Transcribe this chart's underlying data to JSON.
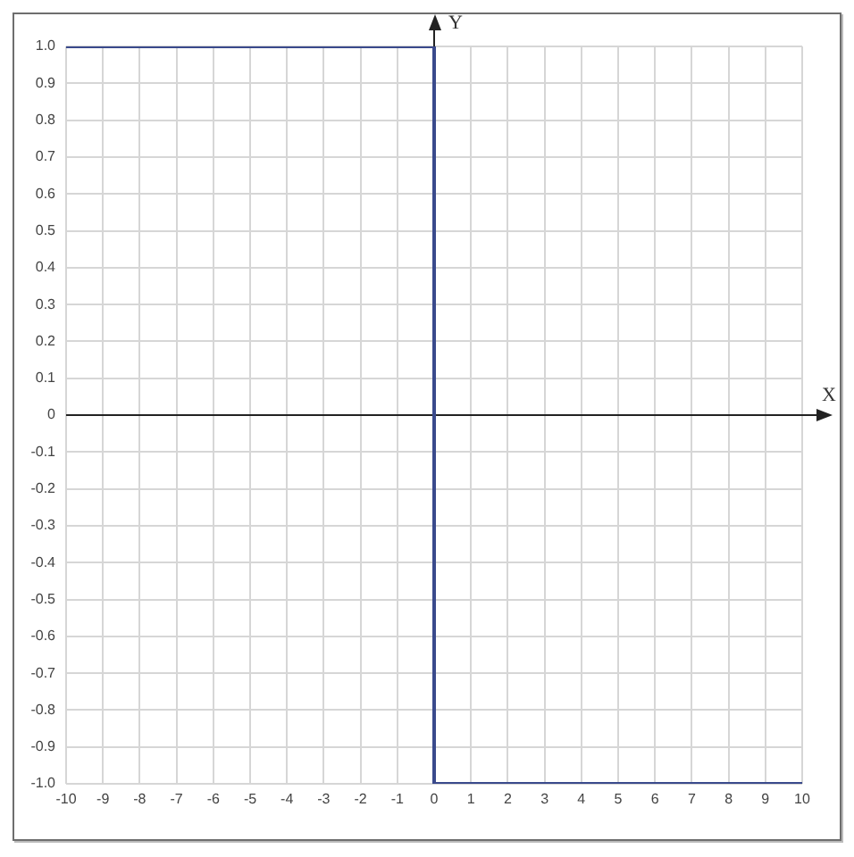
{
  "chart_data": {
    "type": "line",
    "xlabel": "X",
    "ylabel": "Y",
    "x": [
      -10,
      0,
      0,
      10
    ],
    "series": [
      {
        "color": "#3a4a8c",
        "values": [
          1,
          1,
          -1,
          -1
        ]
      }
    ],
    "xlim": [
      -10,
      10
    ],
    "ylim": [
      -1,
      1
    ],
    "xticks": [
      -10,
      -9,
      -8,
      -7,
      -6,
      -5,
      -4,
      -3,
      -2,
      -1,
      0,
      1,
      2,
      3,
      4,
      5,
      6,
      7,
      8,
      9,
      10
    ],
    "yticks": [
      {
        "value": -1,
        "label": "-1.0"
      },
      -0.9,
      -0.8,
      -0.7,
      -0.6,
      -0.5,
      -0.4,
      -0.3,
      -0.2,
      -0.1,
      0,
      0.1,
      0.2,
      0.3,
      0.4,
      0.5,
      0.6,
      0.7,
      0.8,
      0.9,
      {
        "value": 1,
        "label": "1.0"
      }
    ],
    "grid": true,
    "marker": "none"
  }
}
